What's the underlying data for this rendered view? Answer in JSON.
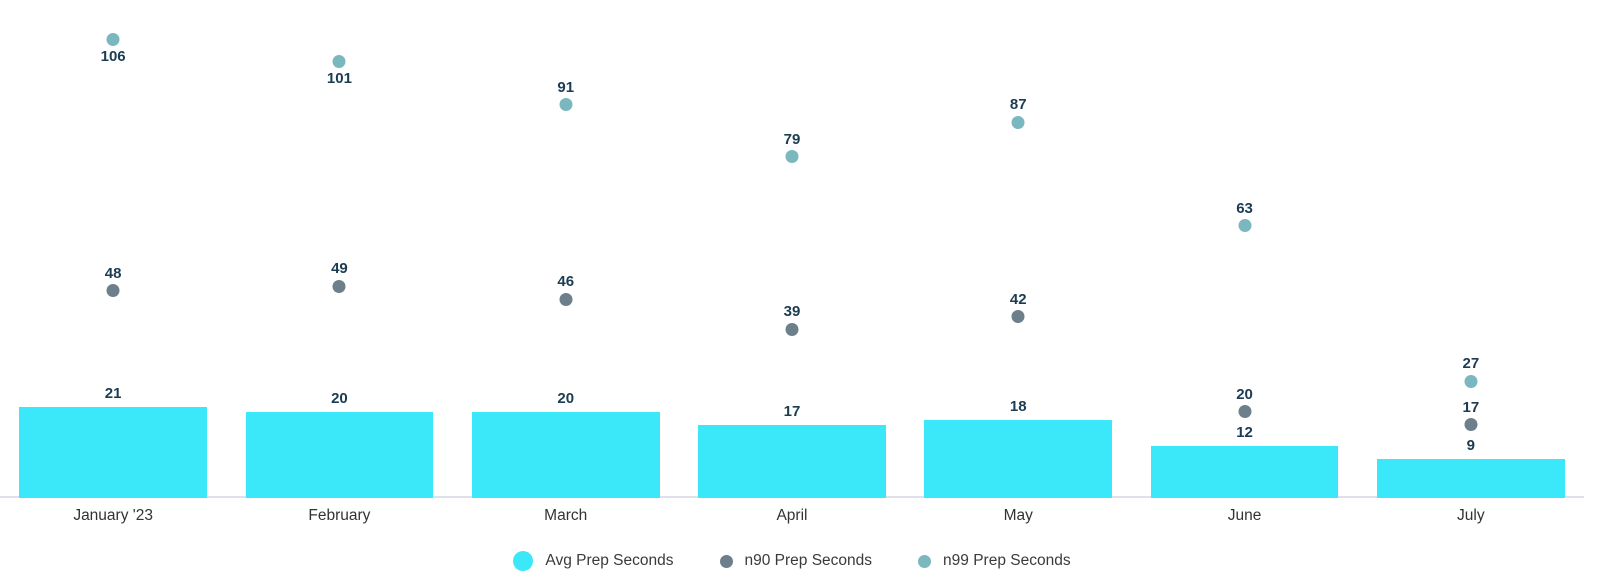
{
  "chart_data": {
    "type": "bar",
    "title": "",
    "categories": [
      "January '23",
      "February",
      "March",
      "April",
      "May",
      "June",
      "July"
    ],
    "series": [
      {
        "name": "Avg Prep Seconds",
        "kind": "bar",
        "color": "#3be8fa",
        "values": [
          21,
          20,
          20,
          17,
          18,
          12,
          9
        ]
      },
      {
        "name": "n90 Prep Seconds",
        "kind": "scatter",
        "color": "#6d7f8a",
        "values": [
          48,
          49,
          46,
          39,
          42,
          20,
          17
        ]
      },
      {
        "name": "n99 Prep Seconds",
        "kind": "scatter",
        "color": "#7bb7be",
        "values": [
          106,
          101,
          91,
          79,
          87,
          63,
          27
        ]
      }
    ],
    "ylim": [
      0,
      112
    ],
    "grid": false,
    "y_axis_visible": false,
    "value_labels": true,
    "legend_position": "bottom-center"
  },
  "colors": {
    "value_label": "#1b3c52",
    "axis_line": "#dee1ea",
    "category_label": "#333333",
    "legend_text": "#3a3a3a",
    "background": "#ffffff"
  }
}
